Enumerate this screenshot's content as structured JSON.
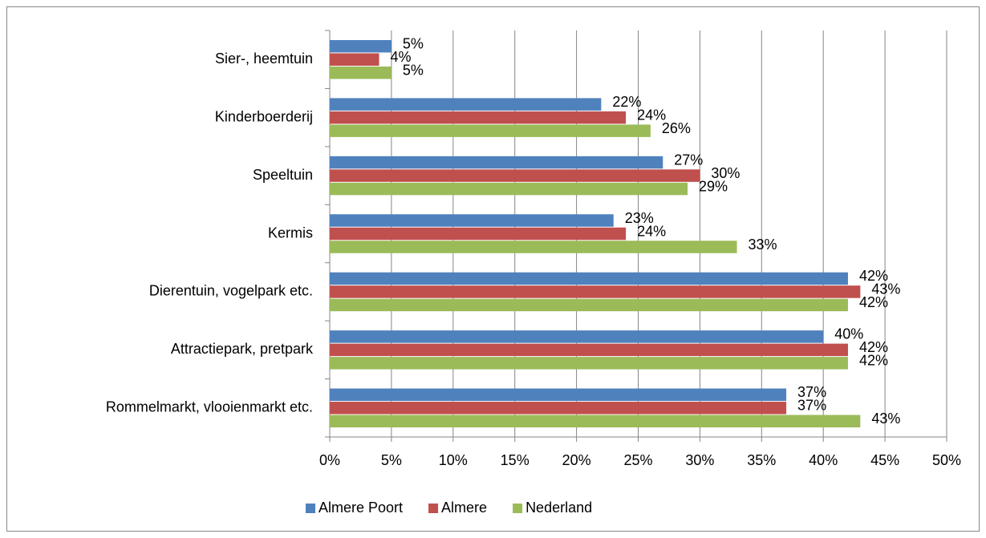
{
  "chart_data": {
    "type": "bar",
    "orientation": "horizontal",
    "categories": [
      "Sier-, heemtuin",
      "Kinderboerderij",
      "Speeltuin",
      "Kermis",
      "Dierentuin, vogelpark etc.",
      "Attractiepark, pretpark",
      "Rommelmarkt, vlooienmarkt etc."
    ],
    "series": [
      {
        "name": "Almere Poort",
        "color": "#4f81bd",
        "values": [
          5,
          22,
          27,
          23,
          42,
          40,
          37
        ],
        "value_labels": [
          "5%",
          "22%",
          "27%",
          "23%",
          "42%",
          "40%",
          "37%"
        ]
      },
      {
        "name": "Almere",
        "color": "#c0504d",
        "values": [
          4,
          24,
          30,
          24,
          43,
          42,
          37
        ],
        "value_labels": [
          "4%",
          "24%",
          "30%",
          "24%",
          "43%",
          "42%",
          "37%"
        ]
      },
      {
        "name": "Nederland",
        "color": "#9bbb59",
        "values": [
          5,
          26,
          29,
          33,
          42,
          42,
          43
        ],
        "value_labels": [
          "5%",
          "26%",
          "29%",
          "33%",
          "42%",
          "42%",
          "43%"
        ]
      }
    ],
    "xlim": [
      0,
      50
    ],
    "xticks": [
      {
        "value": 0,
        "label": "0%"
      },
      {
        "value": 5,
        "label": "5%"
      },
      {
        "value": 10,
        "label": "10%"
      },
      {
        "value": 15,
        "label": "15%"
      },
      {
        "value": 20,
        "label": "20%"
      },
      {
        "value": 25,
        "label": "25%"
      },
      {
        "value": 30,
        "label": "30%"
      },
      {
        "value": 35,
        "label": "35%"
      },
      {
        "value": 40,
        "label": "40%"
      },
      {
        "value": 45,
        "label": "45%"
      },
      {
        "value": 50,
        "label": "50%"
      }
    ],
    "grid": true,
    "legend": "bottom"
  }
}
